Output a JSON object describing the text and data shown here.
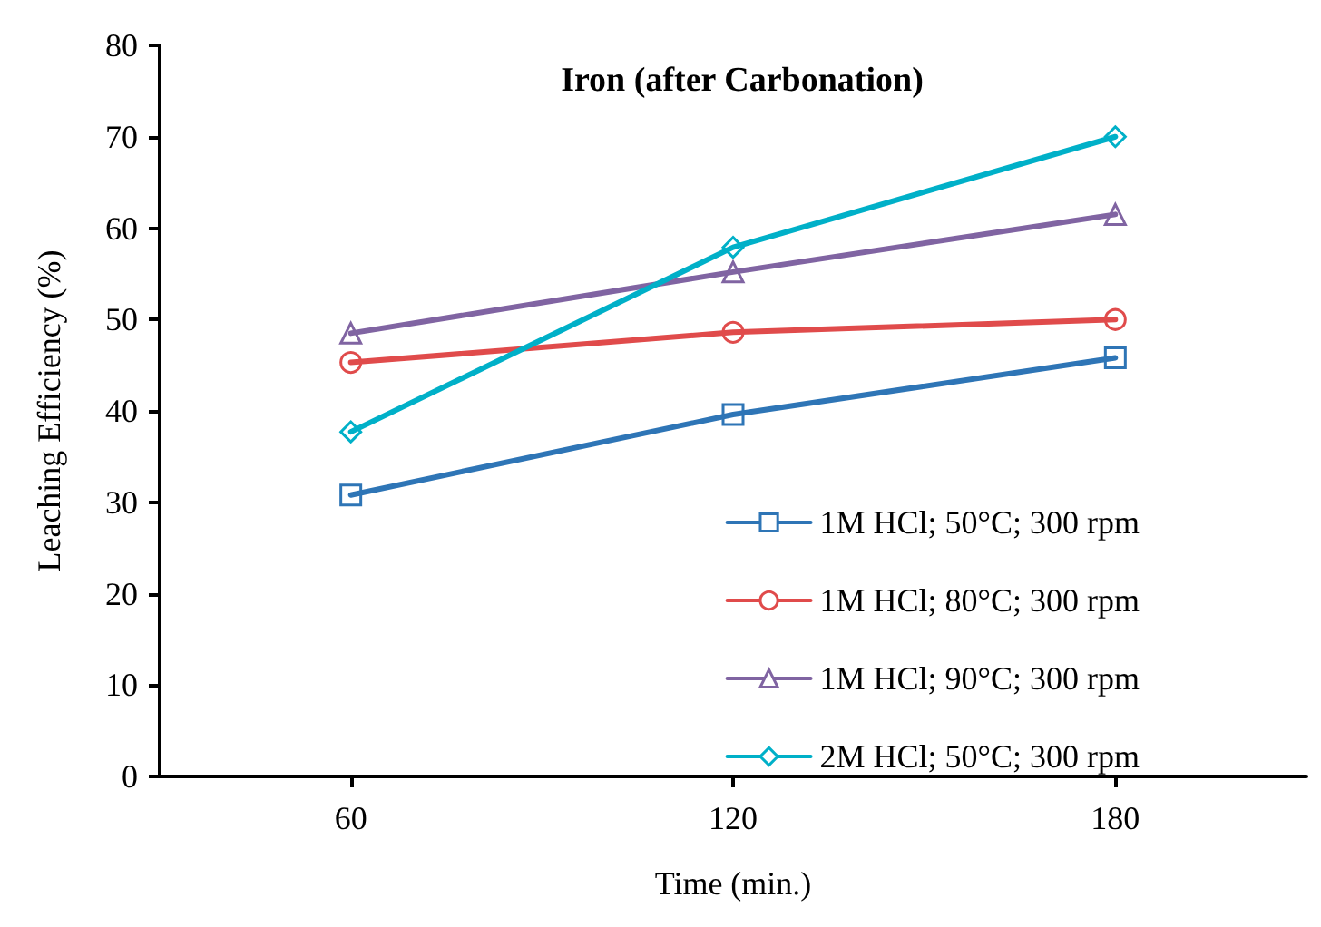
{
  "chart_data": {
    "type": "line",
    "title": "Iron (after Carbonation)",
    "xlabel": "Time (min.)",
    "ylabel": "Leaching Efficiency (%)",
    "categories": [
      "60",
      "120",
      "180"
    ],
    "series": [
      {
        "name": "1M HCl; 50°C; 300 rpm",
        "color": "#2e75b6",
        "marker": "square",
        "values": [
          30.8,
          39.6,
          45.8
        ]
      },
      {
        "name": "1M HCl; 80°C; 300 rpm",
        "color": "#e04b4b",
        "marker": "circle",
        "values": [
          45.3,
          48.6,
          50.0
        ]
      },
      {
        "name": "1M HCl; 90°C; 300 rpm",
        "color": "#8064a2",
        "marker": "triangle",
        "values": [
          48.5,
          55.2,
          61.5
        ]
      },
      {
        "name": "2M HCl; 50°C; 300 rpm",
        "color": "#00b0c8",
        "marker": "diamond",
        "values": [
          37.7,
          57.9,
          70.0
        ]
      }
    ],
    "ylim": [
      0,
      80
    ],
    "yticks": [
      0,
      10,
      20,
      30,
      40,
      50,
      60,
      70,
      80
    ],
    "grid": false,
    "legend": "bottom right",
    "line_style": "solid"
  }
}
